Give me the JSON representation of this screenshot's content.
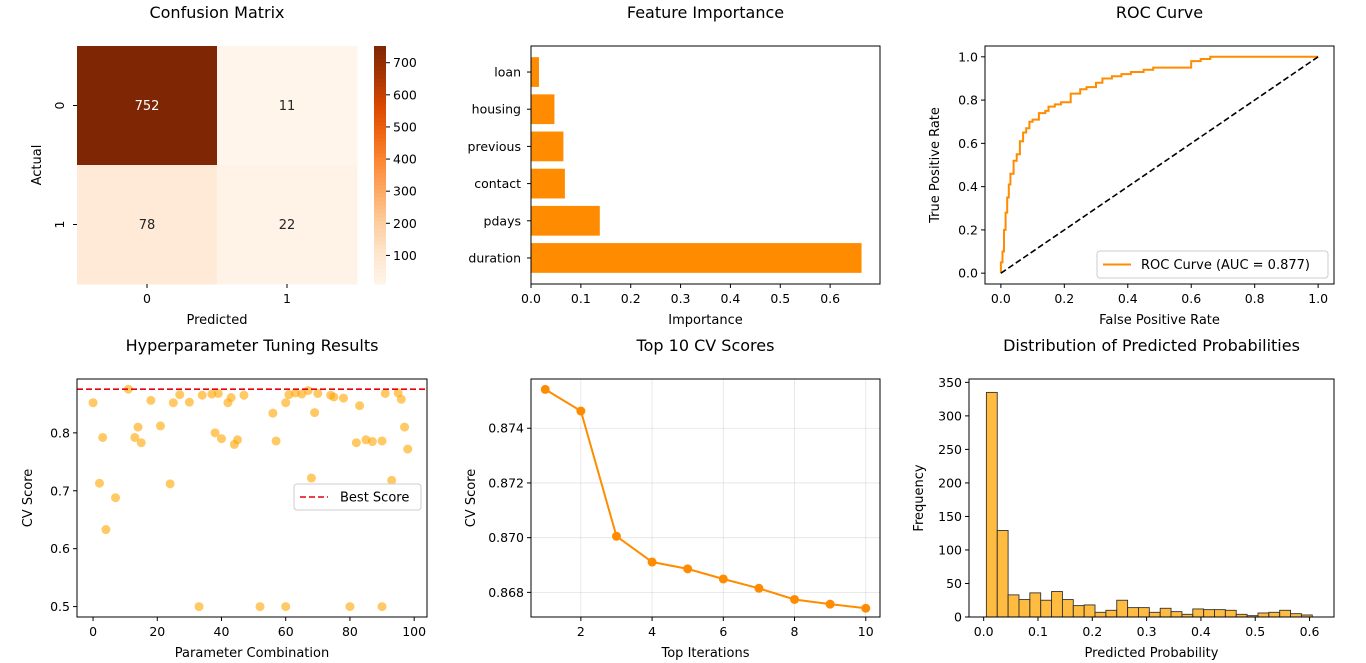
{
  "chart_data": [
    {
      "type": "heatmap",
      "title": "Confusion Matrix",
      "xlabel": "Predicted",
      "ylabel": "Actual",
      "x_categories": [
        "0",
        "1"
      ],
      "y_categories": [
        "0",
        "1"
      ],
      "values": [
        [
          752,
          11
        ],
        [
          78,
          22
        ]
      ],
      "colorbar": {
        "ticks": [
          100,
          200,
          300,
          400,
          500,
          600,
          700
        ],
        "vmin": 11,
        "vmax": 752,
        "colormap": "Oranges"
      }
    },
    {
      "type": "bar",
      "orientation": "horizontal",
      "title": "Feature Importance",
      "xlabel": "Importance",
      "ylabel": "",
      "categories": [
        "duration",
        "pdays",
        "contact",
        "previous",
        "housing",
        "loan"
      ],
      "values": [
        0.663,
        0.138,
        0.068,
        0.065,
        0.047,
        0.016
      ],
      "xlim": [
        0,
        0.7
      ],
      "xticks": [
        0.0,
        0.1,
        0.2,
        0.3,
        0.4,
        0.5,
        0.6
      ],
      "xtick_labels": [
        "0.0",
        "0.1",
        "0.2",
        "0.3",
        "0.4",
        "0.5",
        "0.6"
      ],
      "color": "#ff8c00"
    },
    {
      "type": "line",
      "title": "ROC Curve",
      "xlabel": "False Positive Rate",
      "ylabel": "True Positive Rate",
      "xlim": [
        -0.05,
        1.05
      ],
      "ylim": [
        -0.05,
        1.05
      ],
      "xticks": [
        0.0,
        0.2,
        0.4,
        0.6,
        0.8,
        1.0
      ],
      "yticks": [
        0.0,
        0.2,
        0.4,
        0.6,
        0.8,
        1.0
      ],
      "xtick_labels": [
        "0.0",
        "0.2",
        "0.4",
        "0.6",
        "0.8",
        "1.0"
      ],
      "ytick_labels": [
        "0.0",
        "0.2",
        "0.4",
        "0.6",
        "0.8",
        "1.0"
      ],
      "legend_position": "lower-right",
      "series": [
        {
          "name": "ROC Curve (AUC = 0.877)",
          "color": "#ff8c00",
          "x": [
            0.0,
            0.0,
            0.005,
            0.005,
            0.01,
            0.01,
            0.015,
            0.015,
            0.02,
            0.02,
            0.025,
            0.025,
            0.03,
            0.03,
            0.04,
            0.04,
            0.05,
            0.05,
            0.06,
            0.06,
            0.07,
            0.07,
            0.08,
            0.08,
            0.09,
            0.09,
            0.1,
            0.1,
            0.12,
            0.12,
            0.14,
            0.14,
            0.15,
            0.15,
            0.17,
            0.17,
            0.19,
            0.19,
            0.22,
            0.22,
            0.25,
            0.25,
            0.27,
            0.27,
            0.3,
            0.3,
            0.32,
            0.32,
            0.35,
            0.35,
            0.38,
            0.38,
            0.41,
            0.41,
            0.45,
            0.45,
            0.48,
            0.48,
            0.6,
            0.6,
            0.63,
            0.63,
            0.66,
            0.66,
            0.68,
            0.68,
            1.0
          ],
          "y": [
            0.0,
            0.05,
            0.05,
            0.1,
            0.1,
            0.2,
            0.2,
            0.28,
            0.28,
            0.35,
            0.35,
            0.41,
            0.41,
            0.46,
            0.46,
            0.52,
            0.52,
            0.55,
            0.55,
            0.61,
            0.61,
            0.65,
            0.65,
            0.67,
            0.67,
            0.7,
            0.7,
            0.71,
            0.71,
            0.74,
            0.74,
            0.75,
            0.75,
            0.77,
            0.77,
            0.78,
            0.78,
            0.79,
            0.79,
            0.83,
            0.83,
            0.85,
            0.85,
            0.86,
            0.86,
            0.88,
            0.88,
            0.9,
            0.9,
            0.91,
            0.91,
            0.92,
            0.92,
            0.93,
            0.93,
            0.94,
            0.94,
            0.95,
            0.95,
            0.98,
            0.98,
            0.99,
            0.99,
            1.0,
            1.0,
            1.0,
            1.0
          ]
        },
        {
          "color": "#000000",
          "dash": true,
          "x": [
            0.0,
            1.0
          ],
          "y": [
            0.0,
            1.0
          ]
        }
      ]
    },
    {
      "type": "scatter",
      "title": "Hyperparameter Tuning Results",
      "xlabel": "Parameter Combination",
      "ylabel": "CV Score",
      "xlim": [
        -5,
        104
      ],
      "ylim": [
        0.482,
        0.893
      ],
      "xticks": [
        0,
        20,
        40,
        60,
        80,
        100
      ],
      "yticks": [
        0.5,
        0.6,
        0.7,
        0.8
      ],
      "xtick_labels": [
        "0",
        "20",
        "40",
        "60",
        "80",
        "100"
      ],
      "ytick_labels": [
        "0.5",
        "0.6",
        "0.7",
        "0.8"
      ],
      "legend_position": "center-right",
      "reference_line": {
        "name": "Best Score",
        "y": 0.8754,
        "color": "#e8000b"
      },
      "series": [
        {
          "color": "#ffa500",
          "x": [
            0,
            2,
            3,
            4,
            7,
            11,
            13,
            14,
            15,
            18,
            21,
            24,
            25,
            27,
            30,
            33,
            34,
            37,
            38,
            39,
            40,
            42,
            43,
            44,
            45,
            47,
            52,
            56,
            57,
            60,
            60,
            61,
            63,
            65,
            67,
            68,
            69,
            70,
            74,
            75,
            78,
            80,
            82,
            83,
            85,
            87,
            90,
            90,
            91,
            93,
            95,
            96,
            97,
            98
          ],
          "y": [
            0.852,
            0.713,
            0.792,
            0.633,
            0.688,
            0.8754,
            0.792,
            0.81,
            0.783,
            0.856,
            0.812,
            0.712,
            0.852,
            0.866,
            0.853,
            0.5,
            0.865,
            0.867,
            0.8,
            0.868,
            0.79,
            0.852,
            0.861,
            0.78,
            0.788,
            0.865,
            0.5,
            0.834,
            0.786,
            0.5,
            0.852,
            0.866,
            0.869,
            0.867,
            0.873,
            0.722,
            0.835,
            0.868,
            0.865,
            0.862,
            0.86,
            0.5,
            0.783,
            0.847,
            0.788,
            0.785,
            0.5,
            0.786,
            0.868,
            0.718,
            0.869,
            0.858,
            0.81,
            0.772
          ]
        }
      ]
    },
    {
      "type": "line",
      "title": "Top 10 CV Scores",
      "xlabel": "Top Iterations",
      "ylabel": "CV Score",
      "xlim": [
        0.6,
        10.4
      ],
      "ylim": [
        0.8671,
        0.8758
      ],
      "xticks": [
        2,
        4,
        6,
        8,
        10
      ],
      "yticks": [
        0.868,
        0.87,
        0.872,
        0.874
      ],
      "xtick_labels": [
        "2",
        "4",
        "6",
        "8",
        "10"
      ],
      "ytick_labels": [
        "0.868",
        "0.870",
        "0.872",
        "0.874"
      ],
      "grid": true,
      "series": [
        {
          "color": "#ff8c00",
          "markers": true,
          "x": [
            1,
            2,
            3,
            4,
            5,
            6,
            7,
            8,
            9,
            10
          ],
          "y": [
            0.87542,
            0.87463,
            0.87005,
            0.86911,
            0.86886,
            0.86849,
            0.86815,
            0.86774,
            0.86757,
            0.86742
          ]
        }
      ]
    },
    {
      "type": "bar",
      "title": "Distribution of Predicted Probabilities",
      "xlabel": "Predicted Probability",
      "ylabel": "Frequency",
      "xlim": [
        -0.027,
        0.645
      ],
      "ylim": [
        0,
        355
      ],
      "xticks": [
        0.0,
        0.1,
        0.2,
        0.3,
        0.4,
        0.5,
        0.6
      ],
      "yticks": [
        0,
        50,
        100,
        150,
        200,
        250,
        300,
        350
      ],
      "xtick_labels": [
        "0.0",
        "0.1",
        "0.2",
        "0.3",
        "0.4",
        "0.5",
        "0.6"
      ],
      "ytick_labels": [
        "0",
        "50",
        "100",
        "150",
        "200",
        "250",
        "300",
        "350"
      ],
      "color": "#ffa500",
      "bin_width": 0.02,
      "bin_start": 0.005,
      "values": [
        335,
        129,
        33,
        26,
        36,
        25,
        38,
        26,
        17,
        18,
        7,
        10,
        25,
        14,
        14,
        7,
        13,
        8,
        4,
        12,
        11,
        11,
        10,
        4,
        2,
        6,
        7,
        10,
        5,
        3
      ]
    }
  ]
}
